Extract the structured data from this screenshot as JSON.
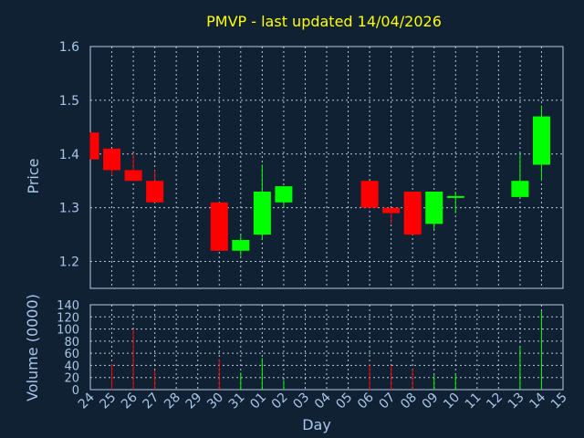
{
  "title": "PMVP - last updated 14/04/2026",
  "colors": {
    "background": "#0f2133",
    "up": "#00ff00",
    "down": "#ff0000",
    "title": "#ffff00",
    "text": "#a9c6e8"
  },
  "chart_data": [
    {
      "type": "candlestick",
      "ylabel": "Price",
      "ylim": [
        1.15,
        1.6
      ],
      "yticks": [
        1.2,
        1.3,
        1.4,
        1.5,
        1.6
      ],
      "grid": true,
      "candles": [
        {
          "day": "24",
          "open": 1.44,
          "high": 1.44,
          "low": 1.39,
          "close": 1.39
        },
        {
          "day": "25",
          "open": 1.41,
          "high": 1.41,
          "low": 1.36,
          "close": 1.37
        },
        {
          "day": "26",
          "open": 1.37,
          "high": 1.4,
          "low": 1.35,
          "close": 1.35
        },
        {
          "day": "27",
          "open": 1.35,
          "high": 1.37,
          "low": 1.31,
          "close": 1.31
        },
        {
          "day": "30",
          "open": 1.31,
          "high": 1.31,
          "low": 1.22,
          "close": 1.22
        },
        {
          "day": "31",
          "open": 1.22,
          "high": 1.25,
          "low": 1.21,
          "close": 1.24
        },
        {
          "day": "01",
          "open": 1.25,
          "high": 1.38,
          "low": 1.24,
          "close": 1.33
        },
        {
          "day": "02",
          "open": 1.31,
          "high": 1.34,
          "low": 1.3,
          "close": 1.34
        },
        {
          "day": "06",
          "open": 1.35,
          "high": 1.35,
          "low": 1.3,
          "close": 1.3
        },
        {
          "day": "07",
          "open": 1.3,
          "high": 1.3,
          "low": 1.27,
          "close": 1.29
        },
        {
          "day": "08",
          "open": 1.33,
          "high": 1.33,
          "low": 1.25,
          "close": 1.25
        },
        {
          "day": "09",
          "open": 1.27,
          "high": 1.33,
          "low": 1.26,
          "close": 1.33
        },
        {
          "day": "10",
          "open": 1.32,
          "high": 1.33,
          "low": 1.29,
          "close": 1.32
        },
        {
          "day": "13",
          "open": 1.32,
          "high": 1.4,
          "low": 1.32,
          "close": 1.35
        },
        {
          "day": "14",
          "open": 1.38,
          "high": 1.49,
          "low": 1.35,
          "close": 1.47
        }
      ]
    },
    {
      "type": "bar",
      "ylabel": "Volume (0000)",
      "ylim": [
        0,
        140
      ],
      "yticks": [
        0,
        20,
        40,
        60,
        80,
        100,
        120,
        140
      ],
      "xlabel": "Day",
      "categories": [
        "24",
        "25",
        "26",
        "27",
        "28",
        "29",
        "30",
        "31",
        "01",
        "02",
        "03",
        "04",
        "05",
        "06",
        "07",
        "08",
        "09",
        "10",
        "11",
        "12",
        "13",
        "14",
        "15"
      ],
      "volumes": [
        {
          "day": "25",
          "value": 42
        },
        {
          "day": "26",
          "value": 100
        },
        {
          "day": "27",
          "value": 32
        },
        {
          "day": "30",
          "value": 50
        },
        {
          "day": "31",
          "value": 28
        },
        {
          "day": "01",
          "value": 52
        },
        {
          "day": "02",
          "value": 16
        },
        {
          "day": "06",
          "value": 42
        },
        {
          "day": "07",
          "value": 40
        },
        {
          "day": "08",
          "value": 34
        },
        {
          "day": "09",
          "value": 24
        },
        {
          "day": "10",
          "value": 26
        },
        {
          "day": "13",
          "value": 70
        },
        {
          "day": "14",
          "value": 130
        }
      ]
    }
  ]
}
